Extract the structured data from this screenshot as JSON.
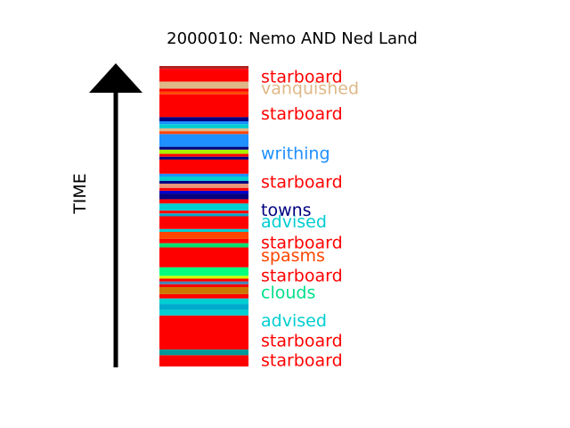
{
  "chart_data": {
    "type": "bar",
    "title": "2000010: Nemo AND Ned Land",
    "ylabel": "TIME",
    "orientation": "bottom-to-top",
    "stack_segments": [
      {
        "y0": 0,
        "y1": 4,
        "color": "#ff0000"
      },
      {
        "y0": 4,
        "y1": 6,
        "color": "#009999"
      },
      {
        "y0": 6,
        "y1": 18,
        "color": "#ff0000"
      },
      {
        "y0": 18,
        "y1": 20,
        "color": "#00ced1"
      },
      {
        "y0": 20,
        "y1": 22,
        "color": "#00aacc"
      },
      {
        "y0": 22,
        "y1": 24,
        "color": "#00ced1"
      },
      {
        "y0": 24,
        "y1": 25.5,
        "color": "#ff0000"
      },
      {
        "y0": 25.5,
        "y1": 28,
        "color": "#cc7700"
      },
      {
        "y0": 28,
        "y1": 29,
        "color": "#ff0000"
      },
      {
        "y0": 29,
        "y1": 30,
        "color": "#4682b4"
      },
      {
        "y0": 30,
        "y1": 31,
        "color": "#ff0000"
      },
      {
        "y0": 31,
        "y1": 32,
        "color": "#ccff00"
      },
      {
        "y0": 32,
        "y1": 35,
        "color": "#00ff7f"
      },
      {
        "y0": 35,
        "y1": 42,
        "color": "#ff0000"
      },
      {
        "y0": 42,
        "y1": 43.5,
        "color": "#00e070"
      },
      {
        "y0": 43.5,
        "y1": 45,
        "color": "#ff0000"
      },
      {
        "y0": 45,
        "y1": 47.5,
        "color": "#ff4500"
      },
      {
        "y0": 47.5,
        "y1": 48.5,
        "color": "#00ced1"
      },
      {
        "y0": 48.5,
        "y1": 53,
        "color": "#ff0000"
      },
      {
        "y0": 53,
        "y1": 54,
        "color": "#00aacc"
      },
      {
        "y0": 54,
        "y1": 55,
        "color": "#ff0000"
      },
      {
        "y0": 55,
        "y1": 57.5,
        "color": "#00ced1"
      },
      {
        "y0": 57.5,
        "y1": 59,
        "color": "#ff0000"
      },
      {
        "y0": 59,
        "y1": 61,
        "color": "#000080"
      },
      {
        "y0": 61,
        "y1": 62,
        "color": "#0000cd"
      },
      {
        "y0": 62,
        "y1": 63,
        "color": "#ff0000"
      },
      {
        "y0": 63,
        "y1": 64.5,
        "color": "#e9967a"
      },
      {
        "y0": 64.5,
        "y1": 65.5,
        "color": "#000080"
      },
      {
        "y0": 65.5,
        "y1": 67,
        "color": "#00ced1"
      },
      {
        "y0": 67,
        "y1": 68,
        "color": "#1e90ff"
      },
      {
        "y0": 68,
        "y1": 73,
        "color": "#ff0000"
      },
      {
        "y0": 73,
        "y1": 74,
        "color": "#000080"
      },
      {
        "y0": 74,
        "y1": 75,
        "color": "#ff0000"
      },
      {
        "y0": 75,
        "y1": 76.5,
        "color": "#aaee00"
      },
      {
        "y0": 76.5,
        "y1": 77.5,
        "color": "#000080"
      },
      {
        "y0": 77.5,
        "y1": 82,
        "color": "#1e90ff"
      },
      {
        "y0": 82,
        "y1": 83,
        "color": "#ff4500"
      },
      {
        "y0": 83,
        "y1": 84,
        "color": "#deb887"
      },
      {
        "y0": 84,
        "y1": 85.5,
        "color": "#00ced1"
      },
      {
        "y0": 85.5,
        "y1": 86.5,
        "color": "#1e90ff"
      },
      {
        "y0": 86.5,
        "y1": 88,
        "color": "#000080"
      },
      {
        "y0": 88,
        "y1": 96,
        "color": "#ff0000"
      },
      {
        "y0": 96,
        "y1": 97,
        "color": "#ff4500"
      },
      {
        "y0": 97,
        "y1": 98,
        "color": "#ff0000"
      },
      {
        "y0": 98,
        "y1": 100.5,
        "color": "#deb887"
      },
      {
        "y0": 100.5,
        "y1": 105,
        "color": "#ff0000"
      },
      {
        "y0": 105,
        "y1": 106,
        "color": "#b22222"
      }
    ],
    "words": [
      {
        "text": "starboard",
        "y": 2,
        "color": "#ff0000"
      },
      {
        "text": "starboard",
        "y": 9,
        "color": "#ff0000"
      },
      {
        "text": "advised",
        "y": 16,
        "color": "#00ced1"
      },
      {
        "text": "clouds",
        "y": 26,
        "color": "#00e08a"
      },
      {
        "text": "starboard",
        "y": 32,
        "color": "#ff0000"
      },
      {
        "text": "spasms",
        "y": 39,
        "color": "#ff4500"
      },
      {
        "text": "starboard",
        "y": 43.5,
        "color": "#ff0000"
      },
      {
        "text": "advised",
        "y": 51,
        "color": "#00ced1"
      },
      {
        "text": "towns",
        "y": 55,
        "color": "#000080"
      },
      {
        "text": "starboard",
        "y": 65,
        "color": "#ff0000"
      },
      {
        "text": "writhing",
        "y": 75,
        "color": "#1e90ff"
      },
      {
        "text": "starboard",
        "y": 89,
        "color": "#ff0000"
      },
      {
        "text": "vanquished",
        "y": 98,
        "color": "#deb887"
      },
      {
        "text": "starboard",
        "y": 102,
        "color": "#ff0000"
      }
    ],
    "ylim": [
      0,
      106
    ],
    "grid": false,
    "legend": "none"
  }
}
